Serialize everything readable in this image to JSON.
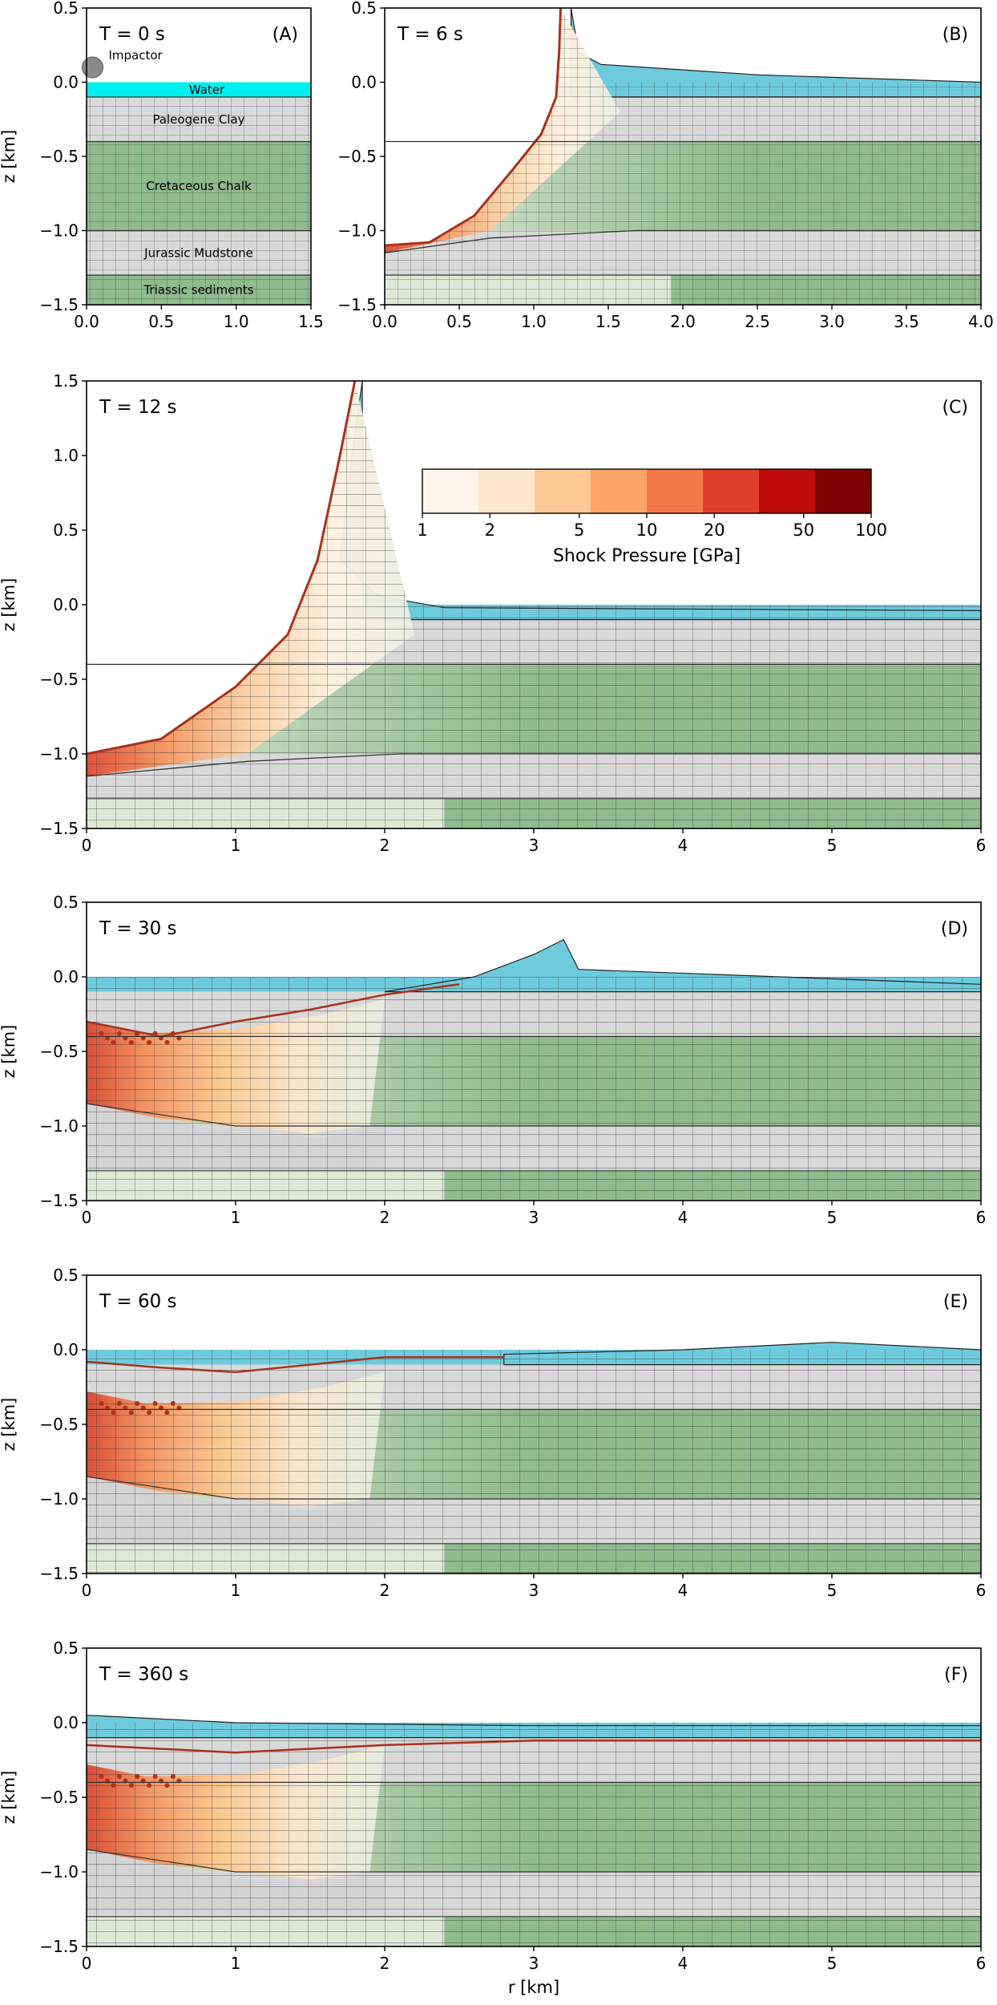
{
  "chart_data": [
    {
      "type": "area",
      "panel_letter": "(A)",
      "time_label": "T =   0 s",
      "xlim": [
        0.0,
        1.5
      ],
      "ylim": [
        -1.5,
        0.5
      ],
      "xticks": [
        "0.0",
        "0.5",
        "1.0",
        "1.5"
      ],
      "yticks": [
        "-1.5",
        "-1.0",
        "-0.5",
        "0.0",
        "0.5"
      ],
      "ylabel": "z [km]",
      "xlabel": "",
      "impactor": {
        "label": "Impactor",
        "r": 0.04,
        "z": 0.1,
        "radius_km": 0.06
      },
      "layers": [
        {
          "name": "Water",
          "top": 0.0,
          "bottom": -0.1,
          "color": "#00f0f0"
        },
        {
          "name": "Paleogene Clay",
          "top": -0.1,
          "bottom": -0.4,
          "color": "#d9d9d9"
        },
        {
          "name": "Cretaceous Chalk",
          "top": -0.4,
          "bottom": -1.0,
          "color": "#8fbb8d"
        },
        {
          "name": "Jurassic Mudstone",
          "top": -1.0,
          "bottom": -1.3,
          "color": "#d9d9d9"
        },
        {
          "name": "Triassic sediments",
          "top": -1.3,
          "bottom": -1.5,
          "color": "#8fbb8d"
        }
      ]
    },
    {
      "type": "area",
      "panel_letter": "(B)",
      "time_label": "T =   6 s",
      "xlim": [
        0.0,
        4.0
      ],
      "ylim": [
        -1.5,
        0.5
      ],
      "xticks": [
        "0.0",
        "0.5",
        "1.0",
        "1.5",
        "2.0",
        "2.5",
        "3.0",
        "3.5",
        "4.0"
      ],
      "yticks": [
        "-1.5",
        "-1.0",
        "-0.5",
        "0.0",
        "0.5"
      ],
      "xlabel": "",
      "ylabel": "",
      "crater_floor_km": [
        [
          0,
          -1.1
        ],
        [
          0.3,
          -1.08
        ],
        [
          0.6,
          -0.9
        ],
        [
          0.85,
          -0.6
        ],
        [
          1.05,
          -0.35
        ],
        [
          1.15,
          -0.1
        ],
        [
          1.17,
          0.2
        ],
        [
          1.18,
          0.5
        ]
      ],
      "water_top_km": [
        [
          1.25,
          0.5
        ],
        [
          1.3,
          0.2
        ],
        [
          1.45,
          0.12
        ],
        [
          2.5,
          0.05
        ],
        [
          4.0,
          0.0
        ]
      ]
    },
    {
      "type": "area",
      "panel_letter": "(C)",
      "time_label": "T =  12 s",
      "xlim": [
        0,
        6
      ],
      "ylim": [
        -1.5,
        1.5
      ],
      "xticks": [
        "0",
        "1",
        "2",
        "3",
        "4",
        "5",
        "6"
      ],
      "yticks": [
        "-1.5",
        "-1.0",
        "-0.5",
        "0.0",
        "0.5",
        "1.0",
        "1.5"
      ],
      "ylabel": "z [km]",
      "xlabel": "",
      "crater_floor_km": [
        [
          0,
          -1.0
        ],
        [
          0.5,
          -0.9
        ],
        [
          1.0,
          -0.55
        ],
        [
          1.35,
          -0.2
        ],
        [
          1.55,
          0.3
        ],
        [
          1.7,
          1.0
        ],
        [
          1.8,
          1.5
        ]
      ],
      "water_top_km": [
        [
          1.85,
          1.5
        ],
        [
          1.78,
          1.0
        ],
        [
          1.7,
          0.3
        ],
        [
          1.95,
          0.06
        ],
        [
          2.4,
          -0.02
        ],
        [
          6,
          -0.04
        ]
      ],
      "colorbar": {
        "label": "Shock Pressure [GPa]",
        "tick_labels": [
          "1",
          "2",
          "5",
          "10",
          "20",
          "50",
          "100"
        ],
        "colors": [
          "#fff5eb",
          "#fee6ce",
          "#fdc895",
          "#fda468",
          "#f4794a",
          "#de3f2c",
          "#bd0c0a",
          "#7f0000"
        ]
      }
    },
    {
      "type": "area",
      "panel_letter": "(D)",
      "time_label": "T =  30 s",
      "xlim": [
        0,
        6
      ],
      "ylim": [
        -1.5,
        0.5
      ],
      "xticks": [
        "0",
        "1",
        "2",
        "3",
        "4",
        "5",
        "6"
      ],
      "yticks": [
        "-1.5",
        "-1.0",
        "-0.5",
        "0.0",
        "0.5"
      ],
      "ylabel": "z [km]",
      "xlabel": "",
      "crater_floor_km": [
        [
          0,
          -0.3
        ],
        [
          0.5,
          -0.4
        ],
        [
          1.0,
          -0.3
        ],
        [
          1.5,
          -0.22
        ],
        [
          2.0,
          -0.12
        ],
        [
          2.5,
          -0.05
        ]
      ],
      "water_top_km": [
        [
          2.0,
          -0.1
        ],
        [
          2.6,
          0.0
        ],
        [
          3.0,
          0.15
        ],
        [
          3.2,
          0.25
        ],
        [
          3.3,
          0.05
        ],
        [
          6,
          -0.05
        ]
      ]
    },
    {
      "type": "area",
      "panel_letter": "(E)",
      "time_label": "T =  60 s",
      "xlim": [
        0,
        6
      ],
      "ylim": [
        -1.5,
        0.5
      ],
      "xticks": [
        "0",
        "1",
        "2",
        "3",
        "4",
        "5",
        "6"
      ],
      "yticks": [
        "-1.5",
        "-1.0",
        "-0.5",
        "0.0",
        "0.5"
      ],
      "ylabel": "z [km]",
      "xlabel": "",
      "crater_floor_km": [
        [
          0,
          -0.08
        ],
        [
          0.5,
          -0.12
        ],
        [
          1.0,
          -0.15
        ],
        [
          1.5,
          -0.1
        ],
        [
          2.0,
          -0.05
        ],
        [
          2.8,
          -0.05
        ]
      ],
      "water_top_km": [
        [
          2.8,
          -0.03
        ],
        [
          4.0,
          0.0
        ],
        [
          5.0,
          0.05
        ],
        [
          6,
          0.0
        ]
      ]
    },
    {
      "type": "area",
      "panel_letter": "(F)",
      "time_label": "T =  360 s",
      "xlim": [
        0,
        6
      ],
      "ylim": [
        -1.5,
        0.5
      ],
      "xticks": [
        "0",
        "1",
        "2",
        "3",
        "4",
        "5",
        "6"
      ],
      "yticks": [
        "-1.5",
        "-1.0",
        "-0.5",
        "0.0",
        "0.5"
      ],
      "ylabel": "z [km]",
      "xlabel": "r [km]",
      "crater_floor_km": [
        [
          0,
          -0.15
        ],
        [
          1.0,
          -0.2
        ],
        [
          2.0,
          -0.15
        ],
        [
          3.0,
          -0.12
        ],
        [
          6,
          -0.12
        ]
      ],
      "water_top_km": [
        [
          0,
          0.05
        ],
        [
          1.0,
          0.0
        ],
        [
          3.0,
          -0.02
        ],
        [
          6,
          -0.02
        ]
      ]
    }
  ]
}
